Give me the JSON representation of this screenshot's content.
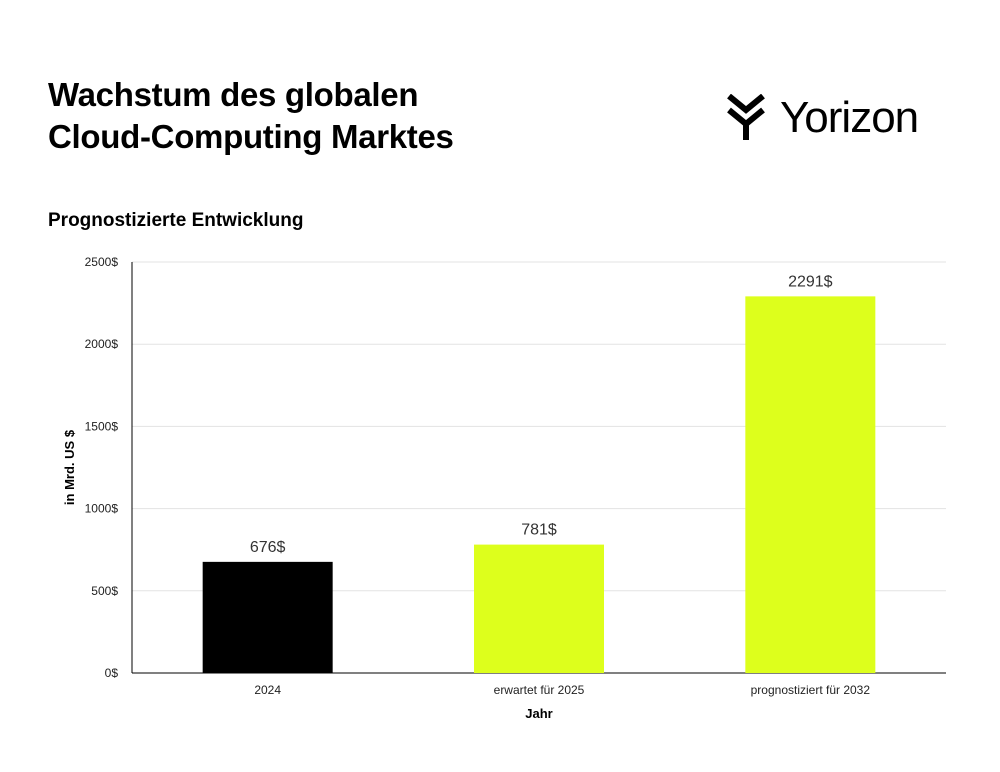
{
  "header": {
    "title_line1": "Wachstum des globalen",
    "title_line2": "Cloud-Computing Marktes",
    "subtitle": "Prognostizierte Entwicklung"
  },
  "brand": {
    "name": "Yorizon",
    "logo_icon": "yorizon-logo-icon"
  },
  "chart_data": {
    "type": "bar",
    "categories": [
      "2024",
      "erwartet für 2025",
      "prognostiziert für 2032"
    ],
    "values": [
      676,
      781,
      2291
    ],
    "value_labels": [
      "676$",
      "781$",
      "2291$"
    ],
    "bar_colors": [
      "#000000",
      "#ddff1c",
      "#ddff1c"
    ],
    "xlabel": "Jahr",
    "ylabel": "in Mrd. US $",
    "ylim": [
      0,
      2500
    ],
    "yticks": [
      0,
      500,
      1000,
      1500,
      2000,
      2500
    ],
    "ytick_labels": [
      "0$",
      "500$",
      "1000$",
      "1500$",
      "2000$",
      "2500$"
    ],
    "grid": true
  }
}
